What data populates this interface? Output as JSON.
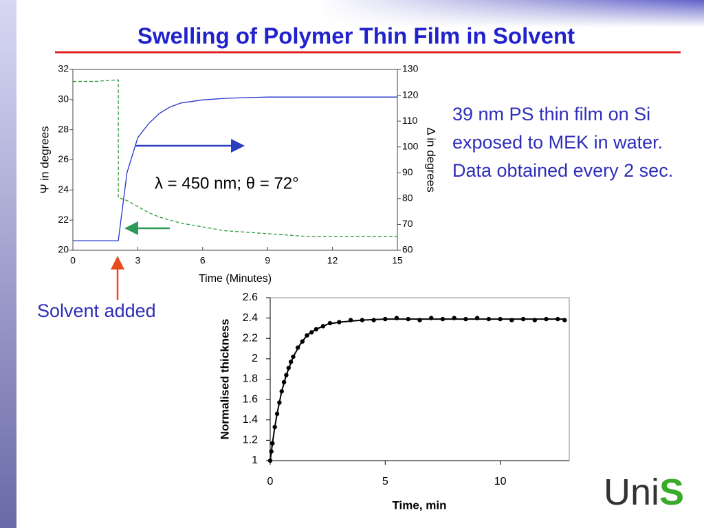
{
  "title": "Swelling of Polymer Thin Film in Solvent",
  "description": "39 nm PS thin film on Si exposed to MEK in water. Data obtained every 2 sec.",
  "annotation": "Solvent added",
  "logo": {
    "text": "Uni",
    "accent": "S"
  },
  "chart_data": [
    {
      "type": "line",
      "annotation": "λ = 450 nm; θ = 72°",
      "x_label": "Time (Minutes)",
      "y_label": "Ψ in degrees",
      "y2_label": "Δ in degrees",
      "x": [
        0,
        1,
        2,
        2.1,
        2.1,
        2.5,
        3,
        3.5,
        4,
        4.5,
        5,
        6,
        7,
        8,
        9,
        10,
        11,
        12,
        13,
        14,
        15
      ],
      "series": [
        {
          "color": "#2e9a3a",
          "line_style": "dashed",
          "axis": "y",
          "values": [
            31.2,
            31.2,
            31.3,
            31.3,
            23.5,
            23.3,
            22.9,
            22.5,
            22.2,
            22.0,
            21.8,
            21.55,
            21.3,
            21.2,
            21.1,
            21.0,
            20.9,
            20.9,
            20.9,
            20.9,
            20.9
          ]
        },
        {
          "color": "#2233cc",
          "line_style": "solid",
          "axis": "y2",
          "values": [
            63.7,
            63.7,
            63.7,
            63.7,
            63.7,
            90.0,
            103.6,
            109.0,
            113.0,
            115.5,
            117.0,
            118.2,
            118.8,
            119.1,
            119.3,
            119.3,
            119.3,
            119.3,
            119.3,
            119.3,
            119.3
          ]
        }
      ],
      "xlim": [
        0,
        15
      ],
      "xticks": [
        0,
        3,
        6,
        9,
        12,
        15
      ],
      "ylim": [
        20,
        32
      ],
      "yticks": [
        20,
        22,
        24,
        26,
        28,
        30,
        32
      ],
      "y2lim": [
        60,
        130
      ],
      "y2ticks": [
        60,
        70,
        80,
        90,
        100,
        110,
        120,
        130
      ]
    },
    {
      "type": "scatter",
      "x_label": "Time, min",
      "y_label": "Normalised thickness",
      "series": [
        {
          "mode": "markers",
          "color": "#000000",
          "x": [
            0,
            0.05,
            0.1,
            0.2,
            0.3,
            0.4,
            0.5,
            0.6,
            0.7,
            0.8,
            0.9,
            1.0,
            1.2,
            1.4,
            1.6,
            1.8,
            2.0,
            2.3,
            2.6,
            3.0,
            3.5,
            4.0,
            4.5,
            5.0,
            5.5,
            6.0,
            6.5,
            7.0,
            7.5,
            8.0,
            8.5,
            9.0,
            9.5,
            10.0,
            10.5,
            11.0,
            11.5,
            12.0,
            12.5,
            12.8
          ],
          "values": [
            1.0,
            1.09,
            1.17,
            1.33,
            1.46,
            1.57,
            1.68,
            1.77,
            1.84,
            1.91,
            1.97,
            2.02,
            2.11,
            2.17,
            2.23,
            2.26,
            2.29,
            2.32,
            2.35,
            2.36,
            2.38,
            2.38,
            2.38,
            2.39,
            2.4,
            2.39,
            2.38,
            2.4,
            2.39,
            2.4,
            2.39,
            2.4,
            2.39,
            2.39,
            2.38,
            2.39,
            2.38,
            2.39,
            2.39,
            2.38
          ]
        },
        {
          "mode": "line",
          "color": "#000000",
          "x": [
            0,
            0.1,
            0.2,
            0.3,
            0.5,
            0.7,
            1.0,
            1.3,
            1.6,
            2.0,
            2.5,
            3.0,
            4.0,
            5.0,
            7.0,
            10.0,
            12.8
          ],
          "values": [
            1.0,
            1.17,
            1.33,
            1.46,
            1.68,
            1.84,
            2.02,
            2.14,
            2.23,
            2.29,
            2.34,
            2.36,
            2.38,
            2.39,
            2.39,
            2.39,
            2.39
          ]
        }
      ],
      "xlim": [
        0,
        13
      ],
      "xticks": [
        0,
        5,
        10
      ],
      "ylim": [
        1,
        2.6
      ],
      "yticks": [
        1,
        1.2,
        1.4,
        1.6,
        1.8,
        2,
        2.2,
        2.4,
        2.6
      ]
    }
  ]
}
